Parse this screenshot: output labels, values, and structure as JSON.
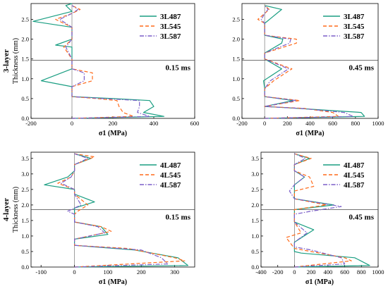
{
  "chart_data": [
    {
      "type": "line",
      "row_label": "3-layer",
      "ylabel": "Thickness (mm)",
      "xlabel": "σ1 (MPa)",
      "time_label": "0.15 ms",
      "xlim": [
        -200,
        600
      ],
      "ylim": [
        0,
        2.9
      ],
      "xticks": [
        -200,
        0,
        200,
        400,
        600
      ],
      "yticks": [
        0.0,
        0.5,
        1.0,
        1.5,
        2.0,
        2.5
      ],
      "hline": 1.47,
      "vline": 0,
      "legend_position": "top-right",
      "series": [
        {
          "name": "3L487",
          "color": "#1a9e82",
          "dash": "solid",
          "points": [
            [
              0,
              0.0
            ],
            [
              450,
              0.05
            ],
            [
              350,
              0.15
            ],
            [
              400,
              0.3
            ],
            [
              380,
              0.45
            ],
            [
              200,
              0.5
            ],
            [
              0,
              0.55
            ],
            [
              0,
              0.8
            ],
            [
              -150,
              0.95
            ],
            [
              0,
              1.25
            ],
            [
              0,
              1.5
            ],
            [
              0,
              1.8
            ],
            [
              -80,
              1.85
            ],
            [
              0,
              2.0
            ],
            [
              0,
              2.3
            ],
            [
              -190,
              2.45
            ],
            [
              0,
              2.7
            ],
            [
              -30,
              2.85
            ],
            [
              0,
              2.9
            ]
          ]
        },
        {
          "name": "3L545",
          "color": "#ff6a1a",
          "dash": "dashed",
          "points": [
            [
              0,
              0.0
            ],
            [
              300,
              0.05
            ],
            [
              250,
              0.15
            ],
            [
              230,
              0.3
            ],
            [
              220,
              0.45
            ],
            [
              120,
              0.5
            ],
            [
              0,
              0.55
            ],
            [
              0,
              0.8
            ],
            [
              100,
              0.95
            ],
            [
              100,
              1.15
            ],
            [
              0,
              1.25
            ],
            [
              0,
              1.5
            ],
            [
              -40,
              1.8
            ],
            [
              0,
              2.0
            ],
            [
              0,
              2.3
            ],
            [
              -80,
              2.5
            ],
            [
              0,
              2.65
            ],
            [
              40,
              2.75
            ],
            [
              0,
              2.85
            ]
          ]
        },
        {
          "name": "3L587",
          "color": "#7b5ec9",
          "dash": "dashdot",
          "points": [
            [
              0,
              0.0
            ],
            [
              380,
              0.05
            ],
            [
              320,
              0.15
            ],
            [
              330,
              0.3
            ],
            [
              330,
              0.45
            ],
            [
              150,
              0.5
            ],
            [
              0,
              0.55
            ],
            [
              0,
              0.8
            ],
            [
              60,
              0.95
            ],
            [
              60,
              1.15
            ],
            [
              0,
              1.25
            ],
            [
              0,
              1.5
            ],
            [
              -30,
              1.8
            ],
            [
              0,
              2.0
            ],
            [
              0,
              2.3
            ],
            [
              -60,
              2.5
            ],
            [
              0,
              2.65
            ],
            [
              30,
              2.75
            ],
            [
              0,
              2.85
            ]
          ]
        }
      ]
    },
    {
      "type": "line",
      "row_label": "",
      "ylabel": "",
      "xlabel": "σ1 (MPa)",
      "time_label": "0.45 ms",
      "xlim": [
        -200,
        1000
      ],
      "ylim": [
        0,
        2.9
      ],
      "xticks": [
        -200,
        0,
        200,
        400,
        600,
        800,
        1000
      ],
      "yticks": [
        0.0,
        0.5,
        1.0,
        1.5,
        2.0,
        2.5
      ],
      "hline": 1.47,
      "vline": 0,
      "legend_position": "top-right",
      "series": [
        {
          "name": "3L487",
          "color": "#1a9e82",
          "dash": "solid",
          "points": [
            [
              0,
              0.0
            ],
            [
              880,
              0.05
            ],
            [
              850,
              0.15
            ],
            [
              300,
              0.25
            ],
            [
              0,
              0.3
            ],
            [
              250,
              0.45
            ],
            [
              0,
              0.55
            ],
            [
              0,
              0.75
            ],
            [
              -10,
              0.95
            ],
            [
              150,
              1.25
            ],
            [
              0,
              1.5
            ],
            [
              0,
              1.65
            ],
            [
              150,
              1.9
            ],
            [
              160,
              2.0
            ],
            [
              0,
              2.1
            ],
            [
              0,
              2.4
            ],
            [
              150,
              2.75
            ],
            [
              0,
              2.85
            ]
          ]
        },
        {
          "name": "3L545",
          "color": "#ff6a1a",
          "dash": "dashed",
          "points": [
            [
              0,
              0.0
            ],
            [
              650,
              0.05
            ],
            [
              600,
              0.15
            ],
            [
              350,
              0.25
            ],
            [
              0,
              0.3
            ],
            [
              310,
              0.45
            ],
            [
              0,
              0.55
            ],
            [
              0,
              0.75
            ],
            [
              80,
              0.95
            ],
            [
              240,
              1.25
            ],
            [
              0,
              1.5
            ],
            [
              0,
              1.65
            ],
            [
              280,
              1.9
            ],
            [
              280,
              2.0
            ],
            [
              0,
              2.1
            ],
            [
              0,
              2.4
            ],
            [
              -60,
              2.5
            ],
            [
              0,
              2.65
            ],
            [
              40,
              2.75
            ],
            [
              0,
              2.85
            ]
          ]
        },
        {
          "name": "3L587",
          "color": "#7b5ec9",
          "dash": "dashdot",
          "points": [
            [
              0,
              0.0
            ],
            [
              780,
              0.05
            ],
            [
              700,
              0.15
            ],
            [
              320,
              0.25
            ],
            [
              0,
              0.3
            ],
            [
              280,
              0.45
            ],
            [
              0,
              0.55
            ],
            [
              0,
              0.75
            ],
            [
              50,
              0.95
            ],
            [
              210,
              1.25
            ],
            [
              0,
              1.5
            ],
            [
              0,
              1.65
            ],
            [
              220,
              1.9
            ],
            [
              230,
              2.0
            ],
            [
              0,
              2.1
            ],
            [
              0,
              2.4
            ],
            [
              -30,
              2.5
            ],
            [
              0,
              2.65
            ],
            [
              30,
              2.75
            ],
            [
              0,
              2.85
            ]
          ]
        }
      ]
    },
    {
      "type": "line",
      "row_label": "4-layer",
      "ylabel": "Thickness (mm)",
      "xlabel": "σ1 (MPa)",
      "time_label": "0.15 ms",
      "xlim": [
        -130,
        360
      ],
      "ylim": [
        0,
        3.7
      ],
      "xticks": [
        -100,
        0,
        100,
        200,
        300
      ],
      "yticks": [
        0.0,
        0.5,
        1.0,
        1.5,
        2.0,
        2.5,
        3.0,
        3.5
      ],
      "hline": 1.85,
      "vline": 0,
      "legend_position": "top-right",
      "series": [
        {
          "name": "4L487",
          "color": "#1a9e82",
          "dash": "solid",
          "points": [
            [
              0,
              0.0
            ],
            [
              340,
              0.05
            ],
            [
              310,
              0.3
            ],
            [
              180,
              0.55
            ],
            [
              0,
              0.7
            ],
            [
              0,
              0.9
            ],
            [
              100,
              1.05
            ],
            [
              80,
              1.3
            ],
            [
              0,
              1.45
            ],
            [
              0,
              1.7
            ],
            [
              0,
              1.9
            ],
            [
              60,
              2.1
            ],
            [
              0,
              2.35
            ],
            [
              0,
              2.5
            ],
            [
              -90,
              2.65
            ],
            [
              -20,
              2.9
            ],
            [
              0,
              3.1
            ],
            [
              0,
              3.3
            ],
            [
              50,
              3.5
            ],
            [
              0,
              3.65
            ]
          ]
        },
        {
          "name": "4L545",
          "color": "#ff6a1a",
          "dash": "dashed",
          "points": [
            [
              0,
              0.0
            ],
            [
              330,
              0.2
            ],
            [
              300,
              0.3
            ],
            [
              160,
              0.6
            ],
            [
              0,
              0.7
            ],
            [
              0,
              0.9
            ],
            [
              110,
              1.15
            ],
            [
              80,
              1.3
            ],
            [
              0,
              1.45
            ],
            [
              0,
              1.7
            ],
            [
              10,
              1.8
            ],
            [
              40,
              2.0
            ],
            [
              0,
              2.35
            ],
            [
              0,
              2.5
            ],
            [
              -50,
              2.7
            ],
            [
              -10,
              2.9
            ],
            [
              0,
              3.1
            ],
            [
              0,
              3.3
            ],
            [
              60,
              3.55
            ],
            [
              0,
              3.65
            ]
          ]
        },
        {
          "name": "4L587",
          "color": "#7b5ec9",
          "dash": "dashdot",
          "points": [
            [
              0,
              0.0
            ],
            [
              280,
              0.1
            ],
            [
              260,
              0.3
            ],
            [
              200,
              0.55
            ],
            [
              0,
              0.7
            ],
            [
              0,
              0.9
            ],
            [
              90,
              1.1
            ],
            [
              70,
              1.3
            ],
            [
              0,
              1.45
            ],
            [
              0,
              1.7
            ],
            [
              -20,
              1.8
            ],
            [
              20,
              2.0
            ],
            [
              0,
              2.35
            ],
            [
              0,
              2.5
            ],
            [
              -40,
              2.7
            ],
            [
              -10,
              2.9
            ],
            [
              0,
              3.1
            ],
            [
              0,
              3.3
            ],
            [
              40,
              3.5
            ],
            [
              0,
              3.65
            ]
          ]
        }
      ]
    },
    {
      "type": "line",
      "row_label": "",
      "ylabel": "",
      "xlabel": "σ1 (MPa)",
      "time_label": "0.45 ms",
      "xlim": [
        -400,
        1000
      ],
      "ylim": [
        0,
        3.7
      ],
      "xticks": [
        -400,
        -200,
        0,
        200,
        400,
        600,
        800,
        1000
      ],
      "yticks": [
        0.0,
        0.5,
        1.0,
        1.5,
        2.0,
        2.5,
        3.0,
        3.5
      ],
      "hline": 1.85,
      "vline": 0,
      "legend_position": "top-right",
      "series": [
        {
          "name": "4L487",
          "color": "#1a9e82",
          "dash": "solid",
          "points": [
            [
              0,
              0.0
            ],
            [
              900,
              0.05
            ],
            [
              720,
              0.3
            ],
            [
              80,
              0.45
            ],
            [
              0,
              0.5
            ],
            [
              0,
              0.8
            ],
            [
              230,
              1.2
            ],
            [
              0,
              1.45
            ],
            [
              0,
              1.7
            ],
            [
              0,
              1.85
            ],
            [
              470,
              2.0
            ],
            [
              0,
              2.2
            ],
            [
              0,
              2.45
            ],
            [
              0,
              2.65
            ],
            [
              120,
              2.9
            ],
            [
              0,
              3.1
            ],
            [
              0,
              3.3
            ],
            [
              180,
              3.5
            ],
            [
              0,
              3.65
            ]
          ]
        },
        {
          "name": "4L545",
          "color": "#ff6a1a",
          "dash": "dashed",
          "points": [
            [
              0,
              0.0
            ],
            [
              680,
              0.2
            ],
            [
              600,
              0.3
            ],
            [
              200,
              0.5
            ],
            [
              0,
              0.6
            ],
            [
              -100,
              0.95
            ],
            [
              80,
              1.1
            ],
            [
              0,
              1.45
            ],
            [
              0,
              1.7
            ],
            [
              0,
              1.85
            ],
            [
              380,
              2.0
            ],
            [
              0,
              2.2
            ],
            [
              0,
              2.45
            ],
            [
              230,
              2.6
            ],
            [
              180,
              2.9
            ],
            [
              0,
              3.1
            ],
            [
              0,
              3.3
            ],
            [
              200,
              3.5
            ],
            [
              0,
              3.65
            ]
          ]
        },
        {
          "name": "4L587",
          "color": "#7b5ec9",
          "dash": "dashdot",
          "points": [
            [
              0,
              0.0
            ],
            [
              600,
              0.1
            ],
            [
              560,
              0.3
            ],
            [
              200,
              0.55
            ],
            [
              0,
              0.65
            ],
            [
              0,
              0.8
            ],
            [
              150,
              1.1
            ],
            [
              0,
              1.45
            ],
            [
              0,
              1.7
            ],
            [
              200,
              1.8
            ],
            [
              560,
              1.95
            ],
            [
              0,
              2.2
            ],
            [
              -60,
              2.45
            ],
            [
              0,
              2.65
            ],
            [
              120,
              2.9
            ],
            [
              0,
              3.1
            ],
            [
              0,
              3.3
            ],
            [
              130,
              3.5
            ],
            [
              0,
              3.65
            ]
          ]
        }
      ]
    }
  ]
}
